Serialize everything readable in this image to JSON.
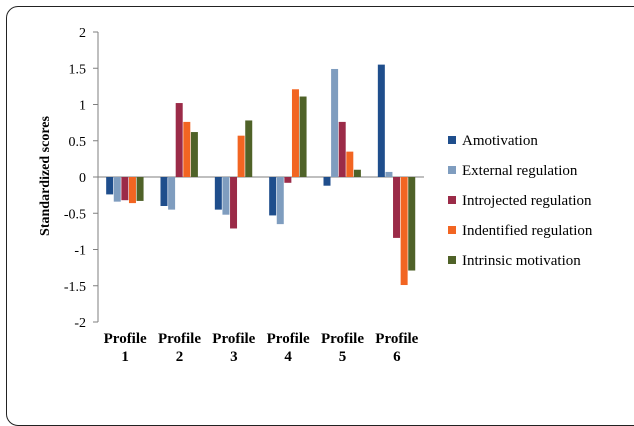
{
  "chart_data": {
    "type": "bar",
    "title": "",
    "xlabel": "",
    "ylabel": "Standardized scores",
    "ylim": [
      -2,
      2
    ],
    "yticks": [
      "2",
      "1.5",
      "1",
      "0.5",
      "0",
      "-0.5",
      "-1",
      "-1.5",
      "-2"
    ],
    "categories": [
      [
        "Profile",
        "1"
      ],
      [
        "Profile",
        "2"
      ],
      [
        "Profile",
        "3"
      ],
      [
        "Profile",
        "4"
      ],
      [
        "Profile",
        "5"
      ],
      [
        "Profile",
        "6"
      ]
    ],
    "series": [
      {
        "name": "Amotivation",
        "color": "#1F4E8C",
        "values": [
          -0.24,
          -0.4,
          -0.45,
          -0.53,
          -0.12,
          1.55
        ]
      },
      {
        "name": "External regulation",
        "color": "#7F9DBF",
        "values": [
          -0.34,
          -0.45,
          -0.52,
          -0.65,
          1.49,
          0.07
        ]
      },
      {
        "name": "Introjected regulation",
        "color": "#9B2B48",
        "values": [
          -0.32,
          1.02,
          -0.71,
          -0.08,
          0.76,
          -0.84
        ]
      },
      {
        "name": "Indentified regulation",
        "color": "#F26522",
        "values": [
          -0.36,
          0.76,
          0.57,
          1.21,
          0.35,
          -1.49
        ]
      },
      {
        "name": "Intrinsic motivation",
        "color": "#4F6228",
        "values": [
          -0.33,
          0.62,
          0.78,
          1.11,
          0.1,
          -1.29
        ]
      }
    ],
    "grid": false,
    "legend_position": "right"
  }
}
